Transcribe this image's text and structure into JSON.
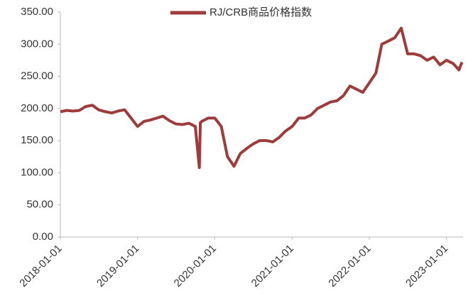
{
  "chart_data": {
    "type": "line",
    "x": [
      "2018-01-01",
      "2018-02-01",
      "2018-03-01",
      "2018-04-01",
      "2018-05-01",
      "2018-06-01",
      "2018-07-01",
      "2018-08-01",
      "2018-09-01",
      "2018-10-01",
      "2018-11-01",
      "2018-12-01",
      "2019-01-01",
      "2019-02-01",
      "2019-03-01",
      "2019-04-01",
      "2019-05-01",
      "2019-06-01",
      "2019-07-01",
      "2019-08-01",
      "2019-09-01",
      "2019-10-01",
      "2019-10-20",
      "2019-10-25",
      "2019-11-01",
      "2019-12-01",
      "2020-01-01",
      "2020-02-01",
      "2020-03-01",
      "2020-04-01",
      "2020-05-01",
      "2020-06-01",
      "2020-07-01",
      "2020-08-01",
      "2020-09-01",
      "2020-10-01",
      "2020-11-01",
      "2020-12-01",
      "2021-01-01",
      "2021-02-01",
      "2021-03-01",
      "2021-04-01",
      "2021-05-01",
      "2021-06-01",
      "2021-07-01",
      "2021-08-01",
      "2021-09-01",
      "2021-10-01",
      "2021-11-01",
      "2021-12-01",
      "2022-01-01",
      "2022-02-01",
      "2022-03-01",
      "2022-04-01",
      "2022-05-01",
      "2022-06-01",
      "2022-07-01",
      "2022-08-01",
      "2022-09-01",
      "2022-10-01",
      "2022-11-01",
      "2022-12-01",
      "2023-01-01",
      "2023-02-01",
      "2023-03-01",
      "2023-03-15"
    ],
    "series": [
      {
        "name": "RJ/CRB商品价格指数",
        "color": "#9e3b3b",
        "values": [
          195,
          197,
          196,
          197,
          203,
          205,
          198,
          195,
          193,
          196,
          198,
          185,
          172,
          180,
          182,
          185,
          188,
          181,
          176,
          175,
          177,
          172,
          108,
          178,
          180,
          185,
          185,
          172,
          125,
          110,
          130,
          138,
          145,
          150,
          150,
          148,
          155,
          165,
          172,
          185,
          185,
          190,
          200,
          205,
          210,
          212,
          220,
          235,
          230,
          225,
          240,
          255,
          300,
          305,
          310,
          325,
          285,
          285,
          282,
          275,
          280,
          268,
          275,
          270,
          260,
          272
        ]
      }
    ],
    "xlim": [
      "2018-01-01",
      "2023-03-20"
    ],
    "xticks": [
      "2018-01-01",
      "2019-01-01",
      "2020-01-01",
      "2021-01-01",
      "2022-01-01",
      "2023-01-01"
    ],
    "ylim": [
      0,
      350
    ],
    "yticks": [
      {
        "value": 0,
        "label": "0.00"
      },
      {
        "value": 50,
        "label": "50.00"
      },
      {
        "value": 100,
        "label": "100.00"
      },
      {
        "value": 150,
        "label": "150.00"
      },
      {
        "value": 200,
        "label": "200.00"
      },
      {
        "value": 250,
        "label": "250.00"
      },
      {
        "value": 300,
        "label": "300.00"
      },
      {
        "value": 350,
        "label": "350.00"
      }
    ],
    "legend": "top"
  }
}
